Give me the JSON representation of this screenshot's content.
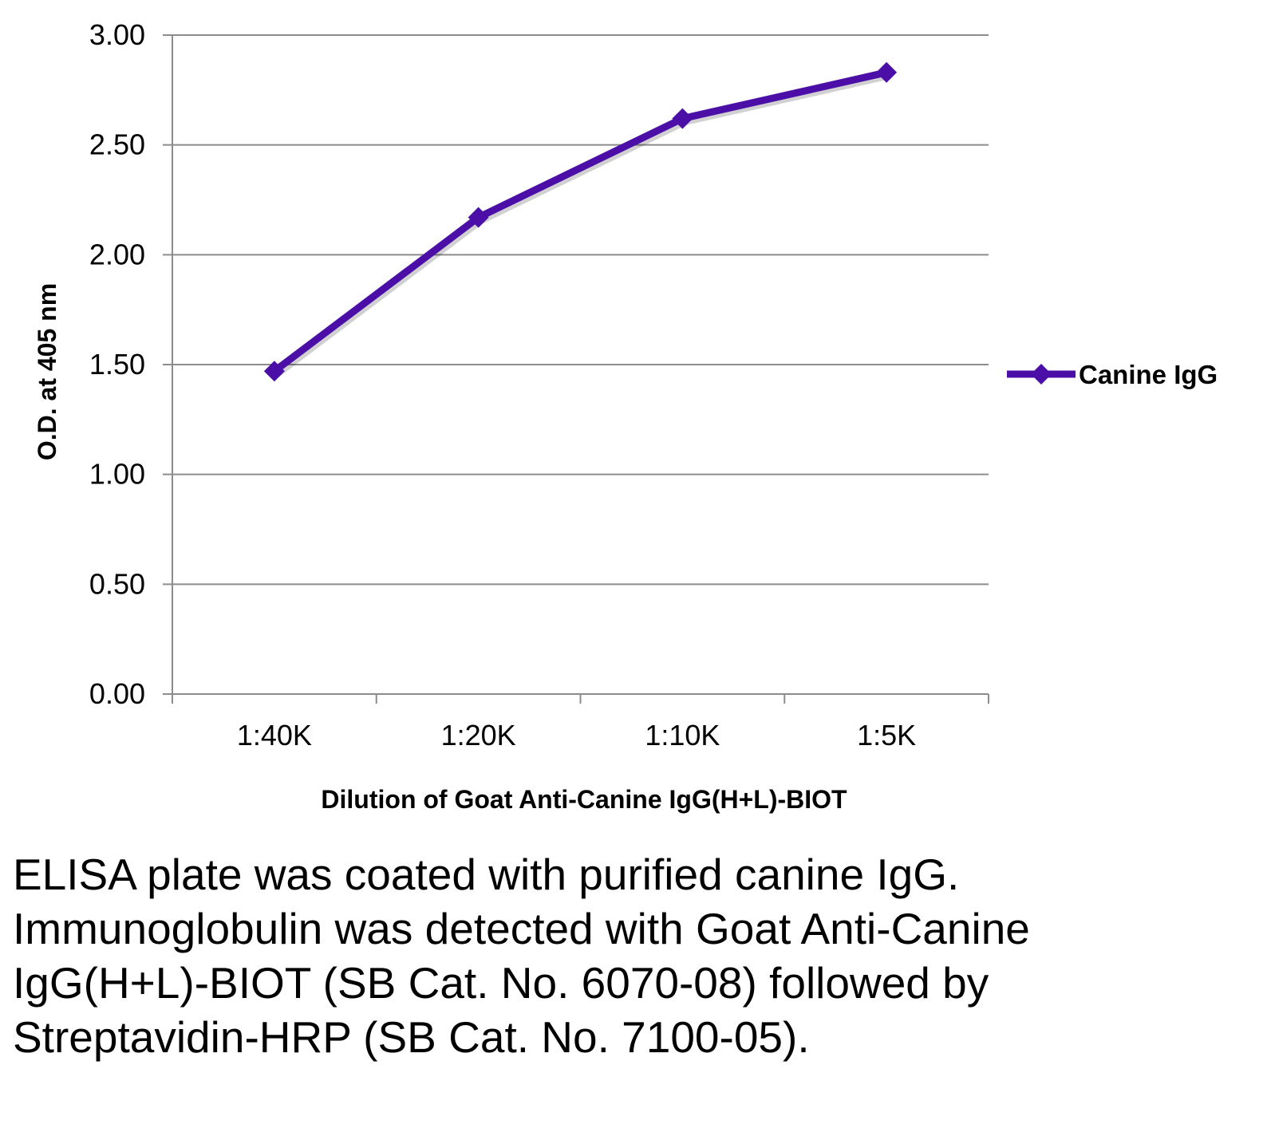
{
  "chart_data": {
    "type": "line",
    "categories": [
      "1:40K",
      "1:20K",
      "1:10K",
      "1:5K"
    ],
    "series": [
      {
        "name": "Canine IgG",
        "values": [
          1.47,
          2.17,
          2.62,
          2.83
        ]
      }
    ],
    "xlabel": "Dilution of Goat Anti-Canine IgG(H+L)-BIOT",
    "ylabel": "O.D. at 405 nm",
    "ylim": [
      0,
      3
    ],
    "yticks": [
      "0.00",
      "0.50",
      "1.00",
      "1.50",
      "2.00",
      "2.50",
      "3.00"
    ],
    "grid": true,
    "legend_position": "right",
    "series_color": "#4B0FA8"
  },
  "caption": "ELISA plate was coated with purified canine IgG.  Immunoglobulin was detected with Goat Anti-Canine IgG(H+L)-BIOT (SB Cat. No. 6070-08) followed by Streptavidin-HRP (SB Cat. No. 7100-05)."
}
